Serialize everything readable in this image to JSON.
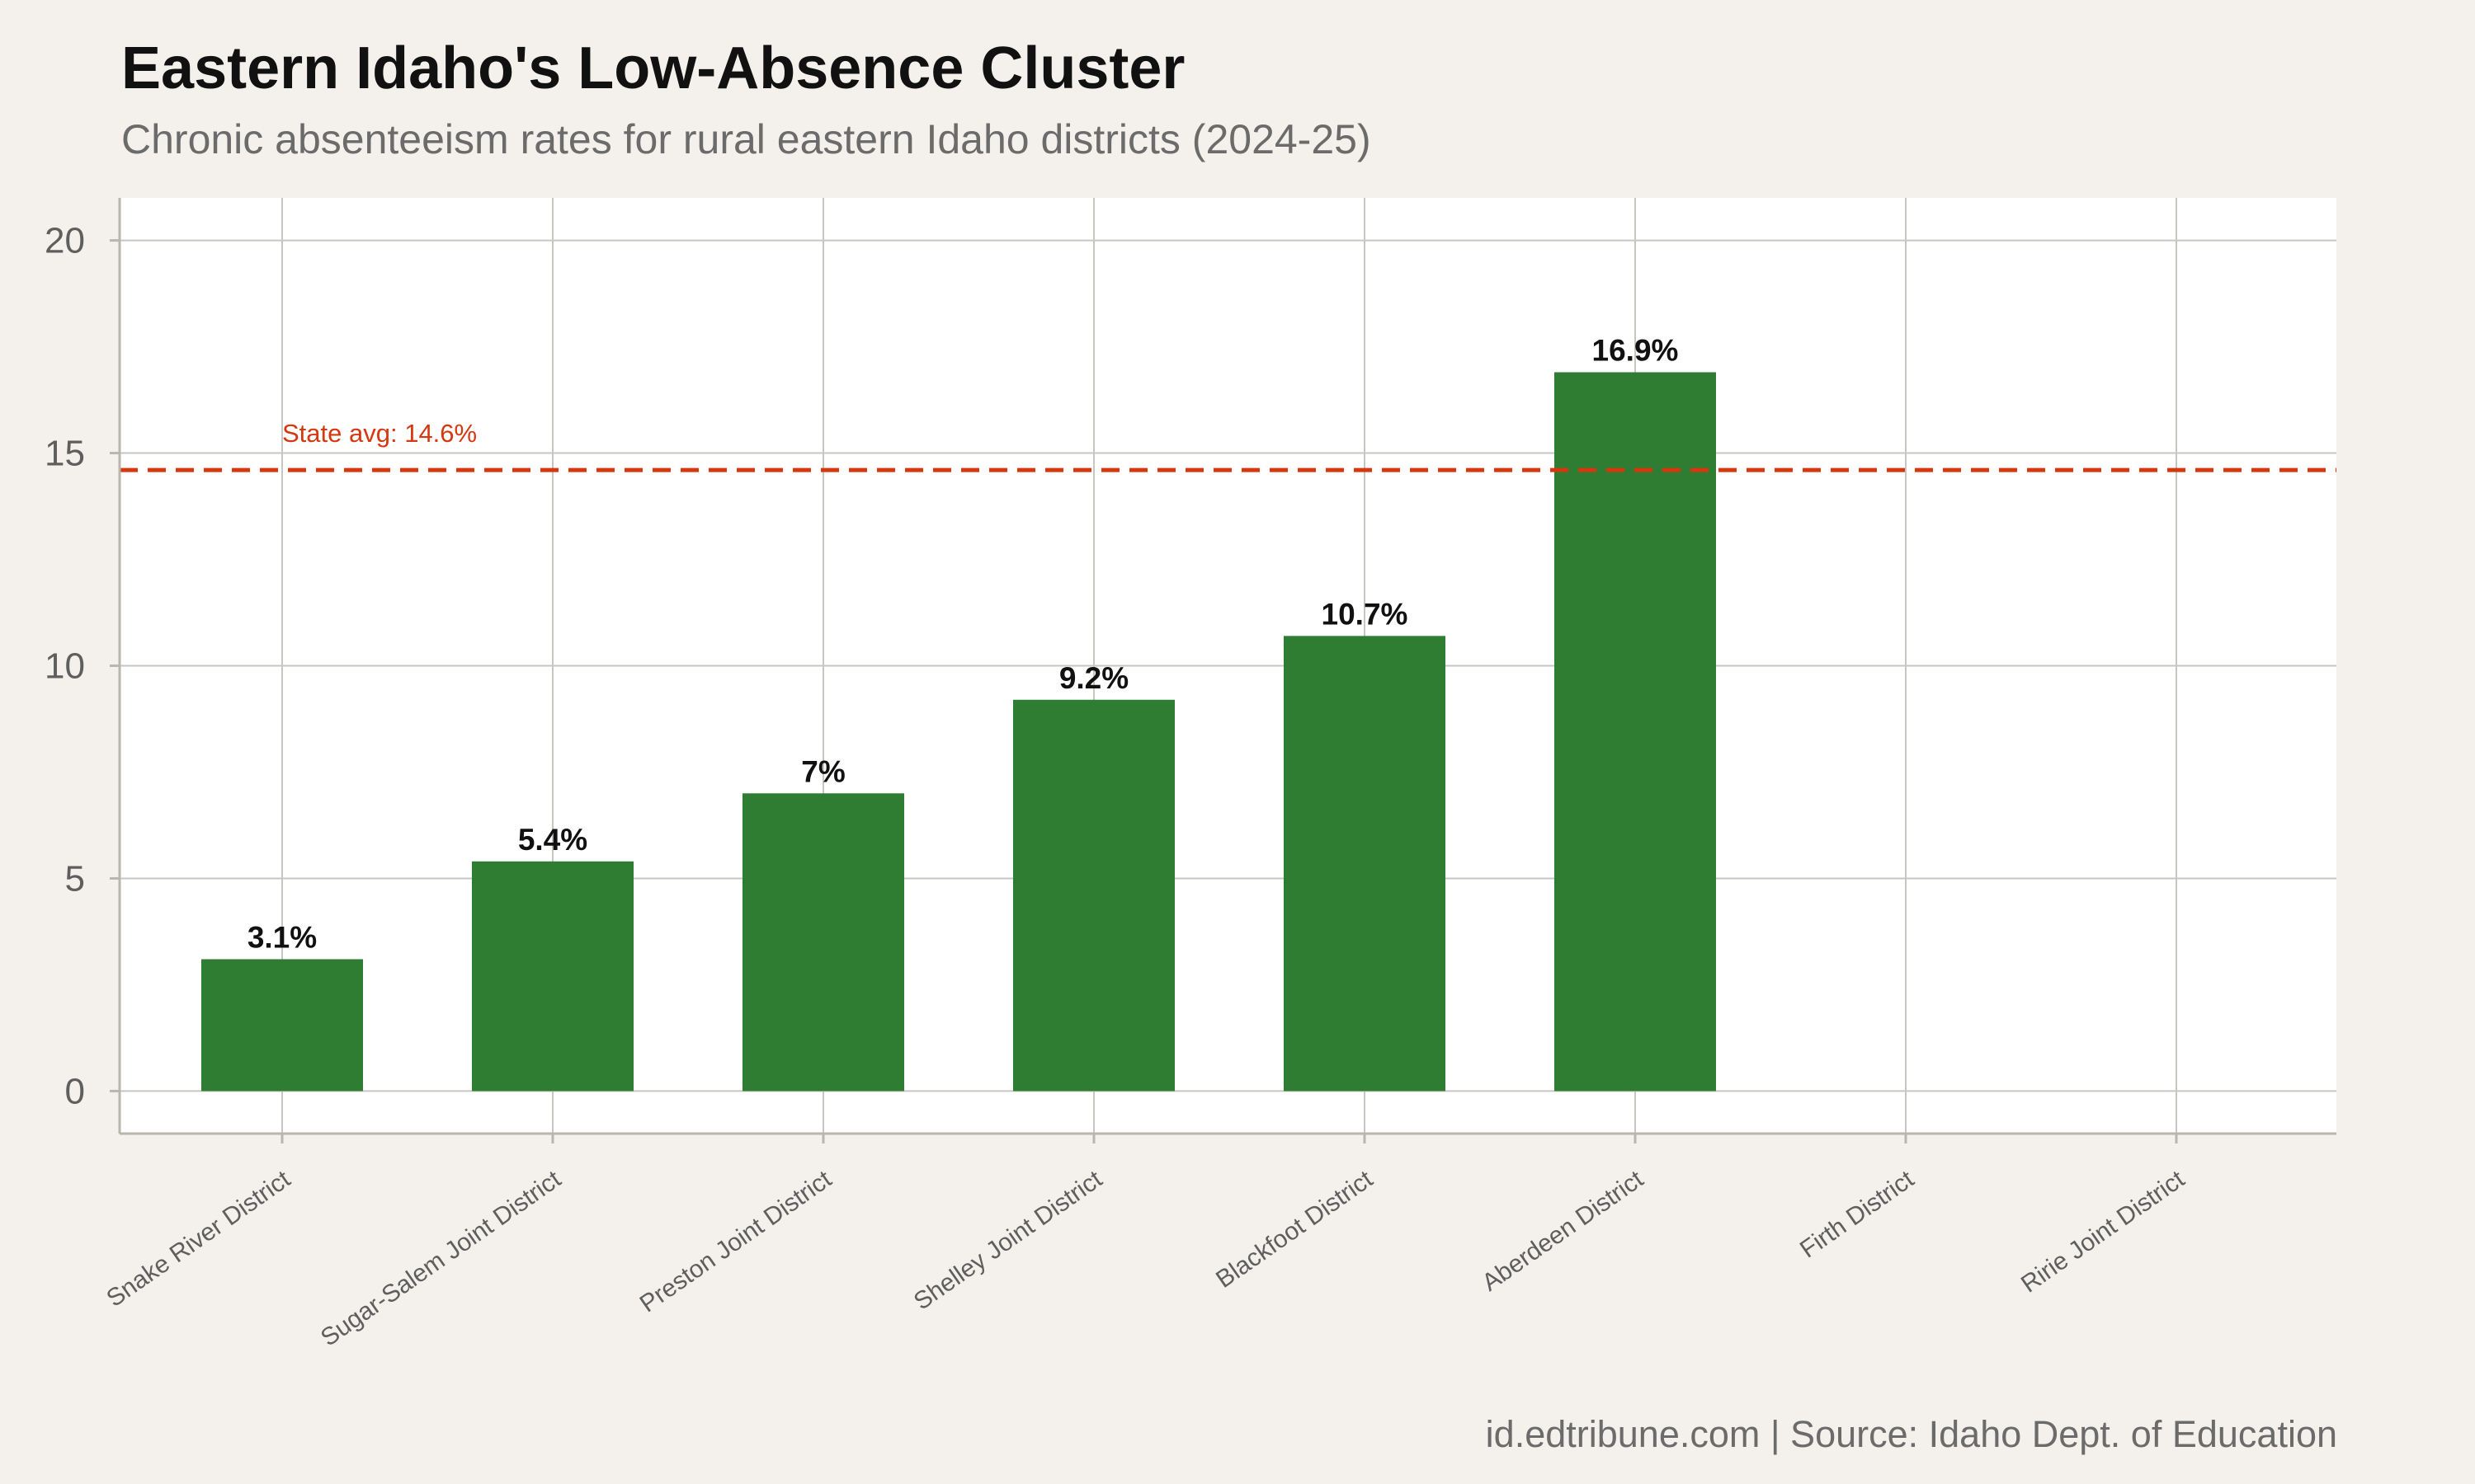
{
  "title": "Eastern Idaho's Low-Absence Cluster",
  "subtitle": "Chronic absenteeism rates for rural eastern Idaho districts (2024-25)",
  "caption": "id.edtribune.com | Source: Idaho Dept. of Education",
  "colors": {
    "bar": "#2e7d32",
    "reference_line": "#d5380f",
    "grid": "#c8c6c0",
    "panel": "#ffffff",
    "background": "#f4f1ec"
  },
  "chart_data": {
    "type": "bar",
    "categories": [
      "Snake River District",
      "Sugar-Salem Joint District",
      "Preston Joint District",
      "Shelley Joint District",
      "Blackfoot District",
      "Aberdeen District",
      "Firth District",
      "Ririe Joint District"
    ],
    "values": [
      3.1,
      5.4,
      7,
      9.2,
      10.7,
      16.9,
      null,
      null
    ],
    "value_labels": [
      "3.1%",
      "5.4%",
      "7%",
      "9.2%",
      "10.7%",
      "16.9%",
      "",
      ""
    ],
    "xlabel": "",
    "ylabel": "",
    "ylim": [
      -1,
      21
    ],
    "yticks": [
      0,
      5,
      10,
      15,
      20
    ],
    "grid": true,
    "reference_line": {
      "value": 14.6,
      "label": "State avg: 14.6%",
      "style": "dashed"
    }
  }
}
